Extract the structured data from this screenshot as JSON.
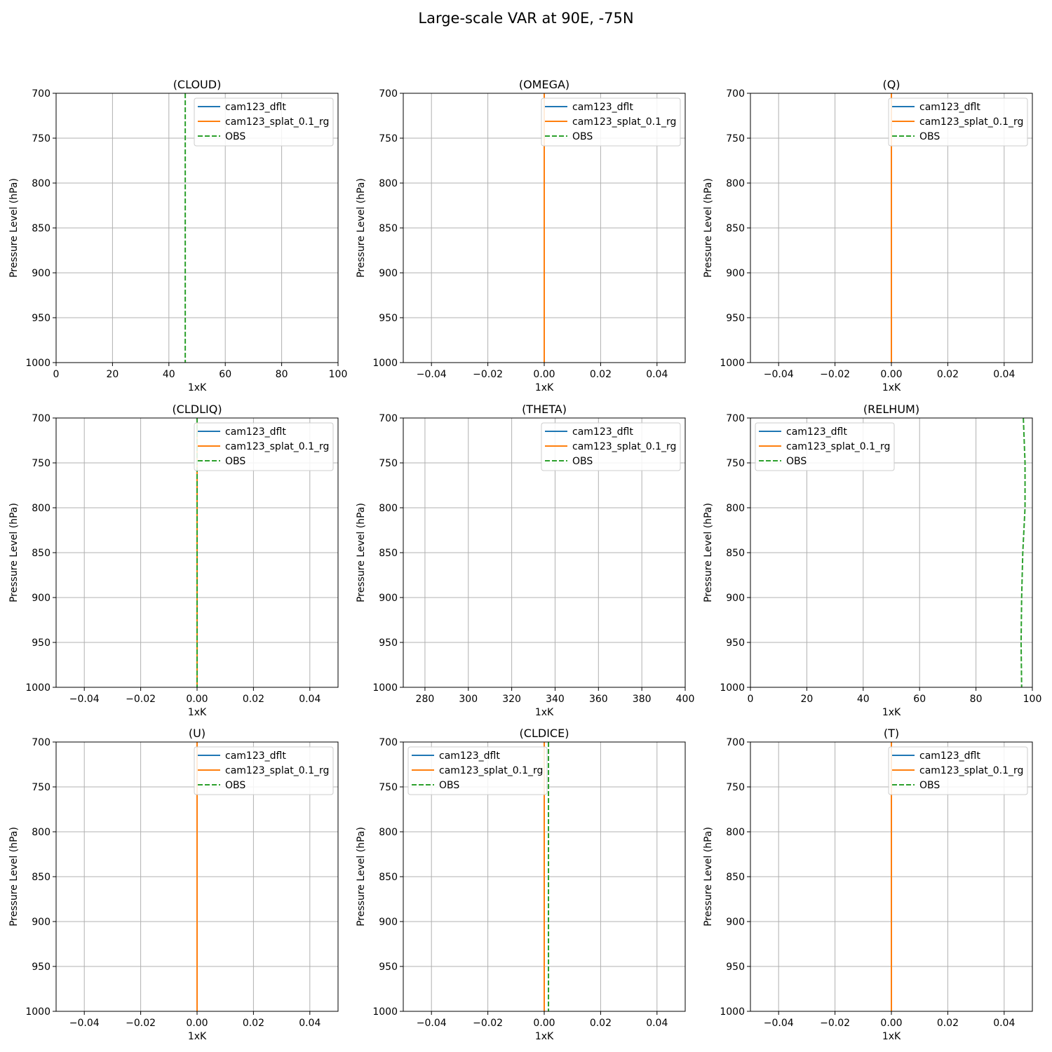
{
  "figure_title": "Large-scale VAR at 90E, -75N",
  "colors": {
    "cam123_dflt": "#1f77b4",
    "cam123_splat_0.1_rg": "#ff7f0e",
    "OBS": "#2ca02c",
    "grid": "#b0b0b0"
  },
  "chart_data": [
    {
      "type": "line",
      "title": "(CLOUD)",
      "xlabel": "1xK",
      "ylabel": "Pressure Level (hPa)",
      "xlim": [
        0,
        100
      ],
      "ylim": [
        1000,
        700
      ],
      "y_inverted": true,
      "xticks": [
        0,
        20,
        40,
        60,
        80,
        100
      ],
      "xtick_labels": [
        "0",
        "20",
        "40",
        "60",
        "80",
        "100"
      ],
      "yticks": [
        700,
        750,
        800,
        850,
        900,
        950,
        1000
      ],
      "ytick_labels": [
        "700",
        "750",
        "800",
        "850",
        "900",
        "950",
        "1000"
      ],
      "grid": true,
      "legend": "upper right",
      "series": [
        {
          "name": "cam123_dflt",
          "style": "solid",
          "points": []
        },
        {
          "name": "cam123_splat_0.1_rg",
          "style": "solid",
          "points": []
        },
        {
          "name": "OBS",
          "style": "dashed",
          "points": [
            [
              45.8,
              700
            ],
            [
              45.8,
              1000
            ]
          ]
        }
      ]
    },
    {
      "type": "line",
      "title": "(OMEGA)",
      "xlabel": "1xK",
      "ylabel": "Pressure Level (hPa)",
      "xlim": [
        -0.05,
        0.05
      ],
      "ylim": [
        1000,
        700
      ],
      "y_inverted": true,
      "xticks": [
        -0.04,
        -0.02,
        0.0,
        0.02,
        0.04
      ],
      "xtick_labels": [
        "−0.04",
        "−0.02",
        "0.00",
        "0.02",
        "0.04"
      ],
      "yticks": [
        700,
        750,
        800,
        850,
        900,
        950,
        1000
      ],
      "ytick_labels": [
        "700",
        "750",
        "800",
        "850",
        "900",
        "950",
        "1000"
      ],
      "grid": true,
      "legend": "upper right",
      "series": [
        {
          "name": "cam123_dflt",
          "style": "solid",
          "points": [
            [
              0,
              700
            ],
            [
              0,
              1000
            ]
          ]
        },
        {
          "name": "cam123_splat_0.1_rg",
          "style": "solid",
          "points": [
            [
              0,
              700
            ],
            [
              0,
              1000
            ]
          ]
        },
        {
          "name": "OBS",
          "style": "dashed",
          "points": []
        }
      ]
    },
    {
      "type": "line",
      "title": "(Q)",
      "xlabel": "1xK",
      "ylabel": "Pressure Level (hPa)",
      "xlim": [
        -0.05,
        0.05
      ],
      "ylim": [
        1000,
        700
      ],
      "y_inverted": true,
      "xticks": [
        -0.04,
        -0.02,
        0.0,
        0.02,
        0.04
      ],
      "xtick_labels": [
        "−0.04",
        "−0.02",
        "0.00",
        "0.02",
        "0.04"
      ],
      "yticks": [
        700,
        750,
        800,
        850,
        900,
        950,
        1000
      ],
      "ytick_labels": [
        "700",
        "750",
        "800",
        "850",
        "900",
        "950",
        "1000"
      ],
      "grid": true,
      "legend": "upper right",
      "series": [
        {
          "name": "cam123_dflt",
          "style": "solid",
          "points": [
            [
              0,
              700
            ],
            [
              0,
              1000
            ]
          ]
        },
        {
          "name": "cam123_splat_0.1_rg",
          "style": "solid",
          "points": [
            [
              0,
              700
            ],
            [
              0,
              1000
            ]
          ]
        },
        {
          "name": "OBS",
          "style": "dashed",
          "points": []
        }
      ]
    },
    {
      "type": "line",
      "title": "(CLDLIQ)",
      "xlabel": "1xK",
      "ylabel": "Pressure Level (hPa)",
      "xlim": [
        -0.05,
        0.05
      ],
      "ylim": [
        1000,
        700
      ],
      "y_inverted": true,
      "xticks": [
        -0.04,
        -0.02,
        0.0,
        0.02,
        0.04
      ],
      "xtick_labels": [
        "−0.04",
        "−0.02",
        "0.00",
        "0.02",
        "0.04"
      ],
      "yticks": [
        700,
        750,
        800,
        850,
        900,
        950,
        1000
      ],
      "ytick_labels": [
        "700",
        "750",
        "800",
        "850",
        "900",
        "950",
        "1000"
      ],
      "grid": true,
      "legend": "upper right",
      "series": [
        {
          "name": "cam123_dflt",
          "style": "solid",
          "points": [
            [
              0,
              700
            ],
            [
              0,
              1000
            ]
          ]
        },
        {
          "name": "cam123_splat_0.1_rg",
          "style": "solid",
          "points": [
            [
              0,
              700
            ],
            [
              0,
              1000
            ]
          ]
        },
        {
          "name": "OBS",
          "style": "dashed",
          "points": [
            [
              0,
              700
            ],
            [
              0,
              1000
            ]
          ]
        }
      ]
    },
    {
      "type": "line",
      "title": "(THETA)",
      "xlabel": "1xK",
      "ylabel": "Pressure Level (hPa)",
      "xlim": [
        270,
        400
      ],
      "ylim": [
        1000,
        700
      ],
      "y_inverted": true,
      "xticks": [
        280,
        300,
        320,
        340,
        360,
        380,
        400
      ],
      "xtick_labels": [
        "280",
        "300",
        "320",
        "340",
        "360",
        "380",
        "400"
      ],
      "yticks": [
        700,
        750,
        800,
        850,
        900,
        950,
        1000
      ],
      "ytick_labels": [
        "700",
        "750",
        "800",
        "850",
        "900",
        "950",
        "1000"
      ],
      "grid": true,
      "legend": "upper right",
      "series": [
        {
          "name": "cam123_dflt",
          "style": "solid",
          "points": []
        },
        {
          "name": "cam123_splat_0.1_rg",
          "style": "solid",
          "points": []
        },
        {
          "name": "OBS",
          "style": "dashed",
          "points": []
        }
      ]
    },
    {
      "type": "line",
      "title": "(RELHUM)",
      "xlabel": "1xK",
      "ylabel": "Pressure Level (hPa)",
      "xlim": [
        0,
        100
      ],
      "ylim": [
        1000,
        700
      ],
      "y_inverted": true,
      "xticks": [
        0,
        20,
        40,
        60,
        80,
        100
      ],
      "xtick_labels": [
        "0",
        "20",
        "40",
        "60",
        "80",
        "100"
      ],
      "yticks": [
        700,
        750,
        800,
        850,
        900,
        950,
        1000
      ],
      "ytick_labels": [
        "700",
        "750",
        "800",
        "850",
        "900",
        "950",
        "1000"
      ],
      "grid": true,
      "legend": "upper left",
      "series": [
        {
          "name": "cam123_dflt",
          "style": "solid",
          "points": []
        },
        {
          "name": "cam123_splat_0.1_rg",
          "style": "solid",
          "points": []
        },
        {
          "name": "OBS",
          "style": "dashed",
          "points": [
            [
              96.8,
              700
            ],
            [
              97.4,
              750
            ],
            [
              97.4,
              800
            ],
            [
              96.6,
              850
            ],
            [
              96.2,
              900
            ],
            [
              96.0,
              950
            ],
            [
              96.2,
              1000
            ]
          ]
        }
      ]
    },
    {
      "type": "line",
      "title": "(U)",
      "xlabel": "1xK",
      "ylabel": "Pressure Level (hPa)",
      "xlim": [
        -0.05,
        0.05
      ],
      "ylim": [
        1000,
        700
      ],
      "y_inverted": true,
      "xticks": [
        -0.04,
        -0.02,
        0.0,
        0.02,
        0.04
      ],
      "xtick_labels": [
        "−0.04",
        "−0.02",
        "0.00",
        "0.02",
        "0.04"
      ],
      "yticks": [
        700,
        750,
        800,
        850,
        900,
        950,
        1000
      ],
      "ytick_labels": [
        "700",
        "750",
        "800",
        "850",
        "900",
        "950",
        "1000"
      ],
      "grid": true,
      "legend": "upper right",
      "series": [
        {
          "name": "cam123_dflt",
          "style": "solid",
          "points": [
            [
              0,
              700
            ],
            [
              0,
              1000
            ]
          ]
        },
        {
          "name": "cam123_splat_0.1_rg",
          "style": "solid",
          "points": [
            [
              0,
              700
            ],
            [
              0,
              1000
            ]
          ]
        },
        {
          "name": "OBS",
          "style": "dashed",
          "points": []
        }
      ]
    },
    {
      "type": "line",
      "title": "(CLDICE)",
      "xlabel": "1xK",
      "ylabel": "Pressure Level (hPa)",
      "xlim": [
        -0.05,
        0.05
      ],
      "ylim": [
        1000,
        700
      ],
      "y_inverted": true,
      "xticks": [
        -0.04,
        -0.02,
        0.0,
        0.02,
        0.04
      ],
      "xtick_labels": [
        "−0.04",
        "−0.02",
        "0.00",
        "0.02",
        "0.04"
      ],
      "yticks": [
        700,
        750,
        800,
        850,
        900,
        950,
        1000
      ],
      "ytick_labels": [
        "700",
        "750",
        "800",
        "850",
        "900",
        "950",
        "1000"
      ],
      "grid": true,
      "legend": "upper left",
      "series": [
        {
          "name": "cam123_dflt",
          "style": "solid",
          "points": [
            [
              0,
              700
            ],
            [
              0,
              1000
            ]
          ]
        },
        {
          "name": "cam123_splat_0.1_rg",
          "style": "solid",
          "points": [
            [
              0,
              700
            ],
            [
              0,
              1000
            ]
          ]
        },
        {
          "name": "OBS",
          "style": "dashed",
          "points": [
            [
              0.0015,
              700
            ],
            [
              0.0015,
              1000
            ]
          ]
        }
      ]
    },
    {
      "type": "line",
      "title": "(T)",
      "xlabel": "1xK",
      "ylabel": "Pressure Level (hPa)",
      "xlim": [
        -0.05,
        0.05
      ],
      "ylim": [
        1000,
        700
      ],
      "y_inverted": true,
      "xticks": [
        -0.04,
        -0.02,
        0.0,
        0.02,
        0.04
      ],
      "xtick_labels": [
        "−0.04",
        "−0.02",
        "0.00",
        "0.02",
        "0.04"
      ],
      "yticks": [
        700,
        750,
        800,
        850,
        900,
        950,
        1000
      ],
      "ytick_labels": [
        "700",
        "750",
        "800",
        "850",
        "900",
        "950",
        "1000"
      ],
      "grid": true,
      "legend": "upper right",
      "series": [
        {
          "name": "cam123_dflt",
          "style": "solid",
          "points": [
            [
              0,
              700
            ],
            [
              0,
              1000
            ]
          ]
        },
        {
          "name": "cam123_splat_0.1_rg",
          "style": "solid",
          "points": [
            [
              0,
              700
            ],
            [
              0,
              1000
            ]
          ]
        },
        {
          "name": "OBS",
          "style": "dashed",
          "points": []
        }
      ]
    }
  ]
}
